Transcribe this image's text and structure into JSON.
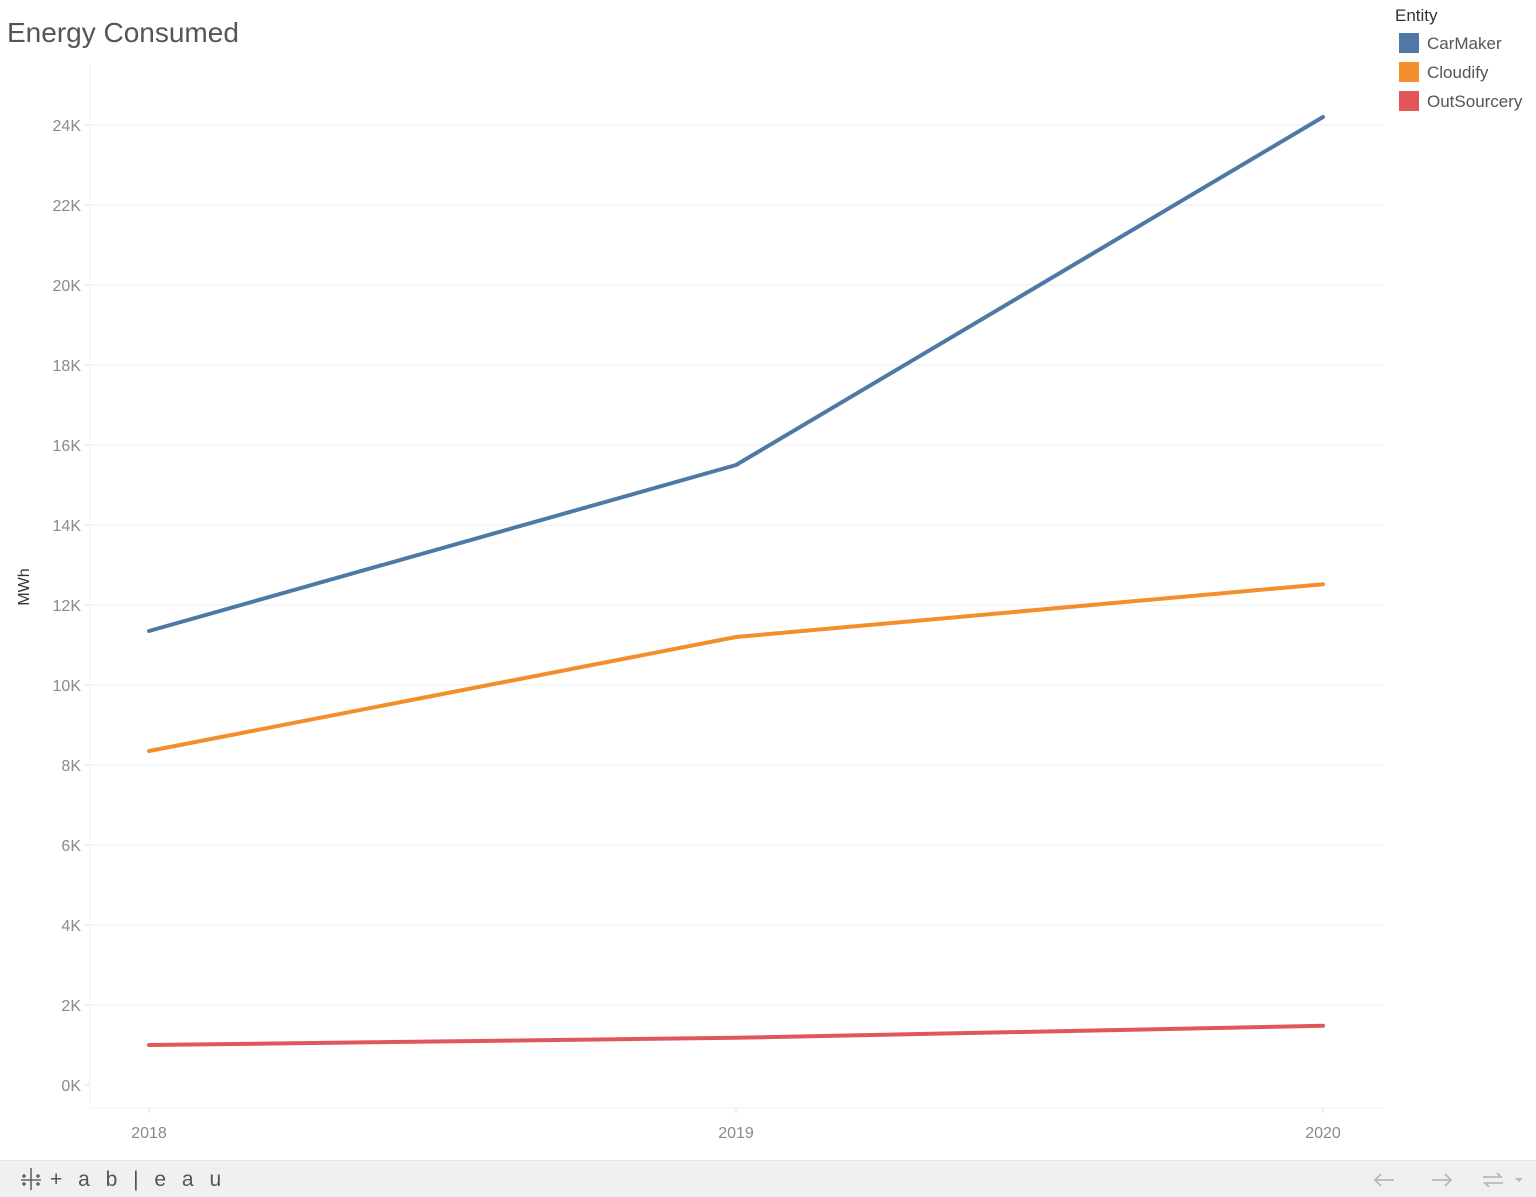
{
  "chart_data": {
    "type": "line",
    "title": "Energy Consumed",
    "ylabel": "MWh",
    "xlabel": "",
    "x": [
      "2018",
      "2019",
      "2020"
    ],
    "ylim": [
      0,
      25500
    ],
    "yticks": [
      0,
      2000,
      4000,
      6000,
      8000,
      10000,
      12000,
      14000,
      16000,
      18000,
      20000,
      22000,
      24000
    ],
    "ytick_labels": [
      "0K",
      "2K",
      "4K",
      "6K",
      "8K",
      "10K",
      "12K",
      "14K",
      "16K",
      "18K",
      "20K",
      "22K",
      "24K"
    ],
    "grid": "horizontal",
    "legend": {
      "title": "Entity",
      "placement": "top-right"
    },
    "series": [
      {
        "name": "CarMaker",
        "color": "#4e79a7",
        "values": [
          11350,
          15500,
          24200
        ]
      },
      {
        "name": "Cloudify",
        "color": "#f28e2b",
        "values": [
          8350,
          11200,
          12520
        ]
      },
      {
        "name": "OutSourcery",
        "color": "#e15759",
        "values": [
          1000,
          1180,
          1480
        ]
      }
    ]
  },
  "footer": {
    "brand": "+ a b | e a u",
    "icons": [
      "tableau-logo-icon",
      "back-arrow-icon",
      "forward-arrow-icon",
      "share-icon",
      "dropdown-caret-icon"
    ],
    "background": "#f0f0f0"
  }
}
